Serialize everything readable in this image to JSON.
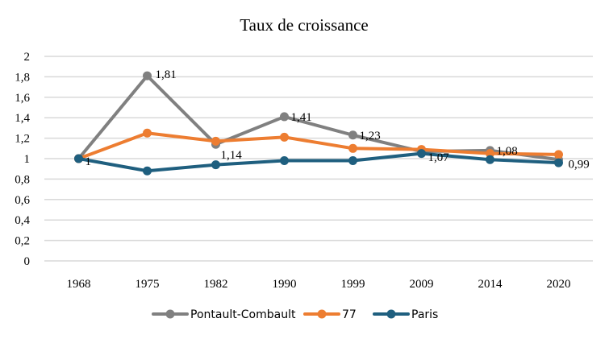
{
  "chart_data": {
    "type": "line",
    "title": "Taux de croissance",
    "xlabel": "",
    "ylabel": "",
    "categories": [
      "1968",
      "1975",
      "1982",
      "1990",
      "1999",
      "2009",
      "2014",
      "2020"
    ],
    "ylim": [
      0,
      2
    ],
    "yticks": [
      "0",
      "0,2",
      "0,4",
      "0,6",
      "0,8",
      "1",
      "1,2",
      "1,4",
      "1,6",
      "1,8",
      "2"
    ],
    "grid": true,
    "legend_position": "bottom",
    "series": [
      {
        "name": "Pontault-Combault",
        "color": "#808080",
        "values": [
          1,
          1.81,
          1.14,
          1.41,
          1.23,
          1.07,
          1.08,
          0.99
        ],
        "data_labels": [
          "1",
          "1,81",
          "1,14",
          "1,41",
          "1,23",
          "1,07",
          "1,08",
          "0,99"
        ]
      },
      {
        "name": "77",
        "color": "#ED7D31",
        "values": [
          1,
          1.25,
          1.17,
          1.21,
          1.1,
          1.09,
          1.05,
          1.04
        ]
      },
      {
        "name": "Paris",
        "color": "#1F5F7F",
        "values": [
          1,
          0.88,
          0.94,
          0.98,
          0.98,
          1.05,
          0.99,
          0.96
        ]
      }
    ]
  }
}
